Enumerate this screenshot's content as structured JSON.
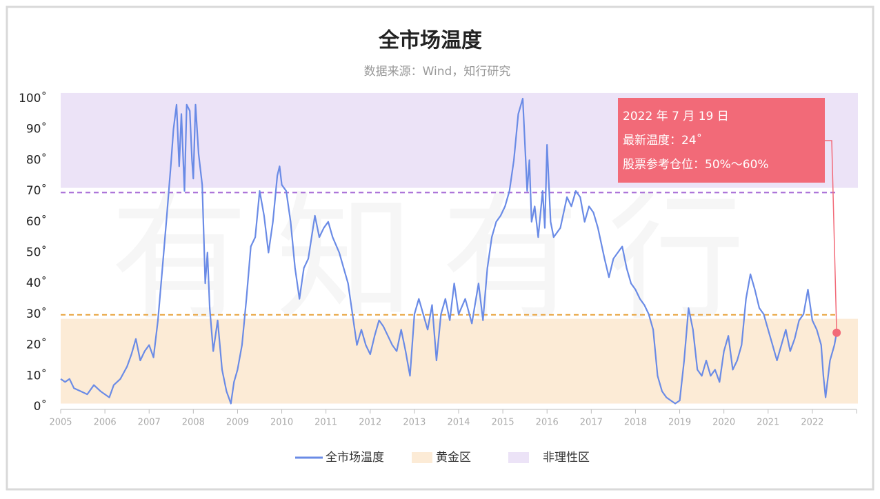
{
  "chart_data": {
    "type": "line",
    "title": "全市场温度",
    "subtitle": "数据来源：Wind，知行研究",
    "watermark": "有知有行",
    "xlim": [
      2005,
      2023
    ],
    "xticks": [
      2005,
      2006,
      2007,
      2008,
      2009,
      2010,
      2011,
      2012,
      2013,
      2014,
      2015,
      2016,
      2017,
      2018,
      2019,
      2020,
      2021,
      2022
    ],
    "ylim": [
      0,
      100
    ],
    "yticks": [
      {
        "value": 0,
        "label": "0˚"
      },
      {
        "value": 10,
        "label": "10˚"
      },
      {
        "value": 20,
        "label": "20˚"
      },
      {
        "value": 30,
        "label": "30˚"
      },
      {
        "value": 40,
        "label": "40˚"
      },
      {
        "value": 50,
        "label": "50˚"
      },
      {
        "value": 60,
        "label": "60˚"
      },
      {
        "value": 70,
        "label": "70˚"
      },
      {
        "value": 80,
        "label": "80˚"
      },
      {
        "value": 90,
        "label": "90˚"
      },
      {
        "value": 100,
        "label": "100˚"
      }
    ],
    "bands": [
      {
        "name": "黄金区",
        "color": "#fcebd6",
        "range": [
          1,
          28.5
        ],
        "line": 29.8,
        "line_color": "#e8a23a"
      },
      {
        "name": "非理性区",
        "color": "#ece3f7",
        "range": [
          71,
          101.8
        ],
        "line": 69.5,
        "line_color": "#a66bd6"
      }
    ],
    "series": [
      {
        "name": "全市场温度",
        "color": "#6a8be6",
        "x": [
          2005.0,
          2005.1,
          2005.2,
          2005.3,
          2005.45,
          2005.6,
          2005.75,
          2005.9,
          2006.0,
          2006.1,
          2006.2,
          2006.35,
          2006.5,
          2006.6,
          2006.7,
          2006.8,
          2006.9,
          2007.0,
          2007.1,
          2007.2,
          2007.3,
          2007.4,
          2007.5,
          2007.55,
          2007.62,
          2007.68,
          2007.73,
          2007.8,
          2007.85,
          2007.92,
          2007.97,
          2008.0,
          2008.05,
          2008.12,
          2008.2,
          2008.27,
          2008.32,
          2008.37,
          2008.45,
          2008.55,
          2008.65,
          2008.75,
          2008.85,
          2008.92,
          2009.0,
          2009.1,
          2009.2,
          2009.3,
          2009.4,
          2009.5,
          2009.6,
          2009.7,
          2009.8,
          2009.9,
          2009.95,
          2010.0,
          2010.1,
          2010.2,
          2010.3,
          2010.4,
          2010.5,
          2010.6,
          2010.75,
          2010.85,
          2010.95,
          2011.05,
          2011.15,
          2011.3,
          2011.4,
          2011.5,
          2011.6,
          2011.7,
          2011.8,
          2011.9,
          2012.0,
          2012.1,
          2012.2,
          2012.3,
          2012.4,
          2012.5,
          2012.6,
          2012.7,
          2012.8,
          2012.9,
          2013.0,
          2013.1,
          2013.2,
          2013.3,
          2013.4,
          2013.5,
          2013.6,
          2013.7,
          2013.8,
          2013.9,
          2014.0,
          2014.15,
          2014.3,
          2014.45,
          2014.55,
          2014.65,
          2014.75,
          2014.85,
          2014.95,
          2015.05,
          2015.15,
          2015.25,
          2015.35,
          2015.45,
          2015.5,
          2015.55,
          2015.6,
          2015.65,
          2015.72,
          2015.8,
          2015.9,
          2015.95,
          2016.0,
          2016.08,
          2016.15,
          2016.3,
          2016.45,
          2016.55,
          2016.65,
          2016.75,
          2016.85,
          2016.95,
          2017.05,
          2017.15,
          2017.3,
          2017.4,
          2017.5,
          2017.6,
          2017.7,
          2017.8,
          2017.9,
          2018.0,
          2018.1,
          2018.2,
          2018.3,
          2018.4,
          2018.5,
          2018.6,
          2018.7,
          2018.8,
          2018.9,
          2019.0,
          2019.1,
          2019.2,
          2019.3,
          2019.4,
          2019.5,
          2019.6,
          2019.7,
          2019.8,
          2019.9,
          2020.0,
          2020.1,
          2020.2,
          2020.3,
          2020.4,
          2020.5,
          2020.6,
          2020.7,
          2020.8,
          2020.9,
          2021.0,
          2021.1,
          2021.2,
          2021.3,
          2021.4,
          2021.5,
          2021.6,
          2021.7,
          2021.8,
          2021.9,
          2022.0,
          2022.1,
          2022.2,
          2022.25,
          2022.3,
          2022.4,
          2022.5,
          2022.55
        ],
        "values": [
          9,
          8,
          9,
          6,
          5,
          4,
          7,
          5,
          4,
          3,
          7,
          9,
          13,
          17,
          22,
          15,
          18,
          20,
          16,
          28,
          45,
          62,
          80,
          90,
          98,
          78,
          95,
          70,
          98,
          96,
          80,
          74,
          98,
          82,
          72,
          40,
          50,
          32,
          18,
          28,
          12,
          5,
          1,
          8,
          12,
          20,
          35,
          52,
          55,
          70,
          62,
          50,
          60,
          75,
          78,
          72,
          70,
          60,
          45,
          35,
          45,
          48,
          62,
          55,
          58,
          60,
          55,
          50,
          45,
          40,
          30,
          20,
          25,
          20,
          17,
          23,
          28,
          26,
          23,
          20,
          18,
          25,
          18,
          10,
          30,
          35,
          30,
          25,
          33,
          15,
          30,
          35,
          28,
          40,
          30,
          35,
          27,
          40,
          28,
          45,
          55,
          60,
          62,
          65,
          70,
          80,
          95,
          100,
          85,
          70,
          80,
          60,
          65,
          55,
          70,
          58,
          85,
          60,
          55,
          58,
          68,
          65,
          70,
          68,
          60,
          65,
          63,
          58,
          48,
          42,
          48,
          50,
          52,
          45,
          40,
          38,
          35,
          33,
          30,
          25,
          10,
          5,
          3,
          2,
          1,
          2,
          15,
          32,
          25,
          12,
          10,
          15,
          10,
          12,
          8,
          18,
          23,
          12,
          15,
          20,
          35,
          43,
          38,
          32,
          30,
          25,
          20,
          15,
          20,
          25,
          18,
          22,
          28,
          30,
          38,
          28,
          25,
          20,
          10,
          3,
          15,
          20,
          24
        ]
      }
    ],
    "annotation": {
      "lines": [
        "2022 年 7 月 19 日",
        "最新温度：24˚",
        "股票参考仓位：50%～60%"
      ],
      "color": "#f26a78"
    }
  }
}
